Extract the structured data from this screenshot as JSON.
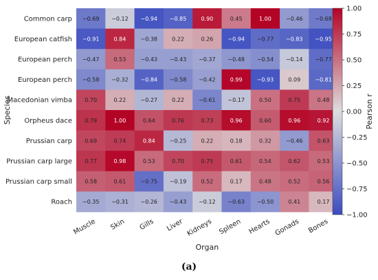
{
  "caption": "(a)",
  "chart_data": {
    "type": "heatmap",
    "xlabel": "Organ",
    "ylabel": "Species",
    "colorbar_label": "Pearson r",
    "vmin": -1.0,
    "vmax": 1.0,
    "colorbar_ticks": [
      "1.00",
      "0.75",
      "0.50",
      "0.25",
      "0.00",
      "−0.25",
      "−0.50",
      "−0.75",
      "−1.00"
    ],
    "colorbar_tick_values": [
      1.0,
      0.75,
      0.5,
      0.25,
      0.0,
      -0.25,
      -0.5,
      -0.75,
      -1.0
    ],
    "x": [
      "Muscle",
      "Skin",
      "Gills",
      "Liver",
      "Kidneys",
      "Spleen",
      "Hearts",
      "Gonads",
      "Bones"
    ],
    "y": [
      "Common carp",
      "European catfish",
      "European perch",
      "European perch",
      "Macedonian vimba",
      "Orpheus dace",
      "Prussian carp",
      "Prussian carp large",
      "Prussian carp small",
      "Roach"
    ],
    "values": [
      [
        -0.69,
        -0.12,
        -0.94,
        -0.85,
        0.9,
        0.45,
        1.0,
        -0.46,
        -0.68
      ],
      [
        -0.91,
        0.84,
        -0.38,
        0.22,
        0.26,
        -0.94,
        -0.77,
        -0.83,
        -0.95
      ],
      [
        -0.47,
        0.53,
        -0.43,
        -0.43,
        -0.37,
        -0.48,
        -0.54,
        -0.14,
        -0.77
      ],
      [
        -0.58,
        -0.32,
        -0.84,
        -0.58,
        -0.42,
        0.99,
        -0.93,
        0.09,
        -0.81
      ],
      [
        0.7,
        0.22,
        -0.27,
        0.22,
        -0.61,
        -0.17,
        0.5,
        0.75,
        0.48
      ],
      [
        0.79,
        1.0,
        0.64,
        0.76,
        0.73,
        0.96,
        0.6,
        0.96,
        0.92
      ],
      [
        0.69,
        0.74,
        0.84,
        -0.25,
        0.22,
        0.18,
        0.32,
        -0.46,
        0.63
      ],
      [
        0.77,
        0.98,
        0.53,
        0.7,
        0.75,
        0.61,
        0.54,
        0.62,
        0.53
      ],
      [
        0.58,
        0.61,
        -0.75,
        -0.19,
        0.52,
        0.17,
        0.48,
        0.52,
        0.56
      ],
      [
        -0.35,
        -0.31,
        -0.26,
        -0.43,
        -0.12,
        -0.63,
        -0.5,
        0.41,
        0.17
      ]
    ],
    "colormap": [
      "#3b4cc0",
      "#dddddd",
      "#b40426"
    ]
  }
}
